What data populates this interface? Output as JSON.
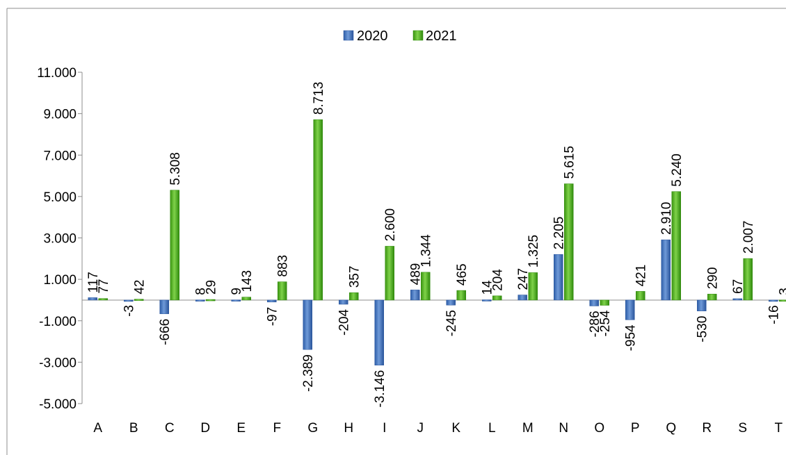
{
  "chart_data": {
    "type": "bar",
    "categories": [
      "A",
      "B",
      "C",
      "D",
      "E",
      "F",
      "G",
      "H",
      "I",
      "J",
      "K",
      "L",
      "M",
      "N",
      "O",
      "P",
      "Q",
      "R",
      "S",
      "T"
    ],
    "series": [
      {
        "name": "2020",
        "color": "#3b6bb5",
        "values": [
          117,
          -3,
          -666,
          8,
          9,
          -97,
          -2389,
          -204,
          -3146,
          489,
          -245,
          14,
          247,
          2205,
          -286,
          -954,
          2910,
          -530,
          67,
          -16
        ],
        "labels": [
          "117",
          "-3",
          "-666",
          "8",
          "9",
          "-97",
          "-2.389",
          "-204",
          "-3.146",
          "489",
          "-245",
          "14",
          "247",
          "2.205",
          "-286",
          "-954",
          "2.910",
          "-530",
          "67",
          "-16"
        ]
      },
      {
        "name": "2021",
        "color": "#4aa818",
        "values": [
          77,
          42,
          5308,
          29,
          143,
          883,
          8713,
          357,
          2600,
          1344,
          465,
          204,
          1325,
          5615,
          -254,
          421,
          5240,
          290,
          2007,
          3
        ],
        "labels": [
          "77",
          "42",
          "5.308",
          "29",
          "143",
          "883",
          "8.713",
          "357",
          "2.600",
          "1.344",
          "465",
          "204",
          "1.325",
          "5.615",
          "-254",
          "421",
          "5.240",
          "290",
          "2.007",
          "3"
        ]
      }
    ],
    "yticks": [
      -5000,
      -3000,
      -1000,
      1000,
      3000,
      5000,
      7000,
      9000,
      11000
    ],
    "ytick_labels": [
      "-5.000",
      "-3.000",
      "-1.000",
      "1.000",
      "3.000",
      "5.000",
      "7.000",
      "9.000",
      "11.000"
    ],
    "ylim": [
      -5000,
      11000
    ],
    "legend": "top-center",
    "title": "",
    "xlabel": "",
    "ylabel": ""
  }
}
